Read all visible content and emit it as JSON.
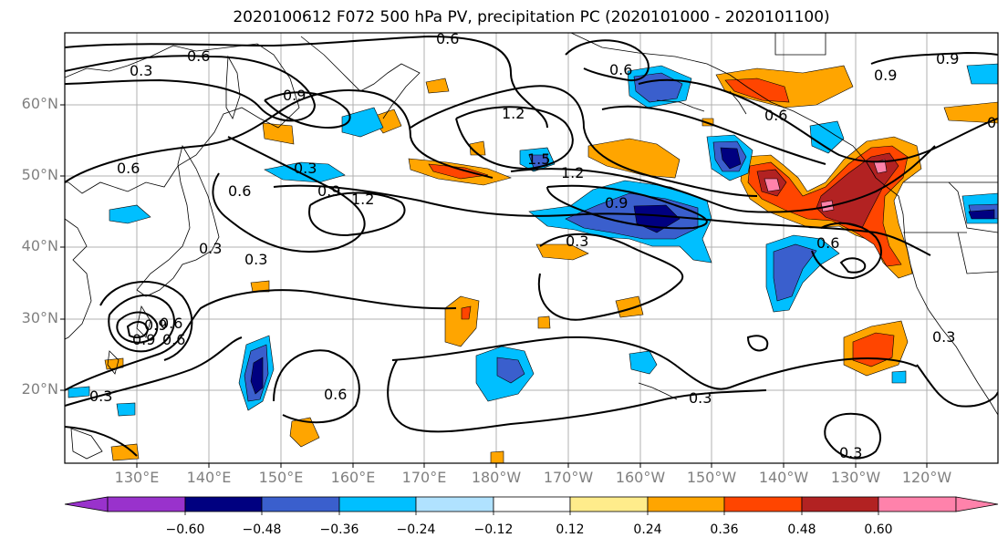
{
  "title": "2020100612 F072 500 hPa PV, precipitation PC (2020101000 - 2020101100)",
  "lat_ticks": [
    "60°N",
    "50°N",
    "40°N",
    "30°N",
    "20°N"
  ],
  "lon_ticks": [
    "130°E",
    "140°E",
    "150°E",
    "160°E",
    "170°E",
    "180°W",
    "170°W",
    "160°W",
    "150°W",
    "140°W",
    "130°W",
    "120°W"
  ],
  "colorbar": {
    "ticks": [
      "−0.60",
      "−0.48",
      "−0.36",
      "−0.24",
      "−0.12",
      "0.12",
      "0.24",
      "0.36",
      "0.48",
      "0.60"
    ],
    "colors": [
      "#9932cc",
      "#000080",
      "#3a5fcd",
      "#00bfff",
      "#b0e2ff",
      "#ffffff",
      "#ffec8b",
      "#ffa500",
      "#ff4500",
      "#b22222",
      "#ff82ab"
    ]
  },
  "contour_labels": [
    "0.6",
    "0.3",
    "0.9",
    "0.6",
    "0.6",
    "0.9",
    "1.2",
    "0.6",
    "0.9",
    "0.6",
    "0.6",
    "0.3",
    "0.3",
    "0.9",
    "0.6",
    "0.3",
    "0.9",
    "1.2",
    "0.9",
    "1.5",
    "0.3",
    "0.6",
    "0.3",
    "1.2",
    "0.3",
    "0.9",
    "0.6",
    "0.3",
    "0.6",
    "0.6",
    "0.3"
  ]
}
